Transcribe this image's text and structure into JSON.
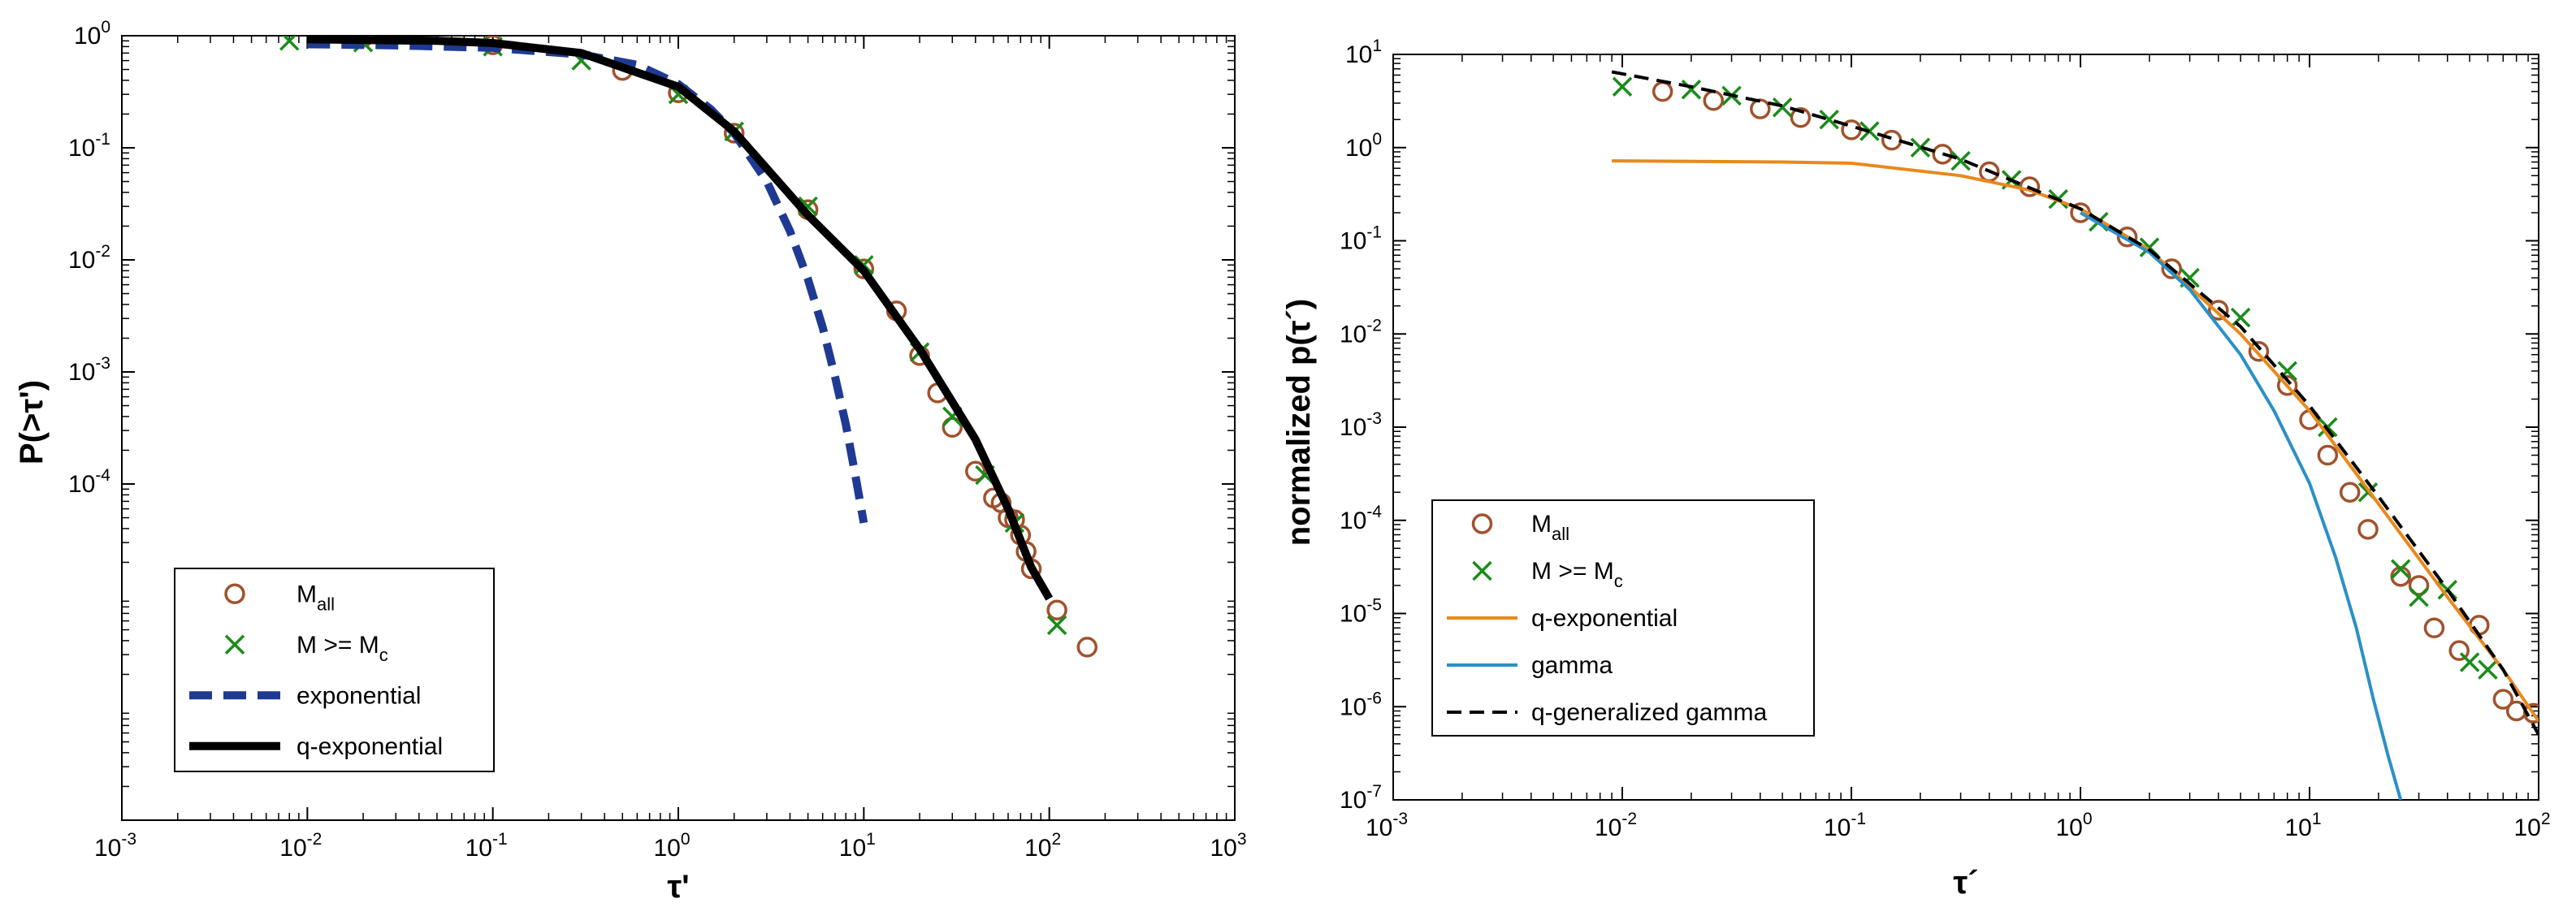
{
  "chart_data": [
    {
      "type": "line",
      "scale": "log-log",
      "title": "",
      "xlabel": "τ'",
      "ylabel": "P(>τ')",
      "xlim": [
        0.001,
        1000
      ],
      "ylim": [
        1e-07,
        1
      ],
      "xticks": [
        {
          "base": "10",
          "exp": "-3"
        },
        {
          "base": "10",
          "exp": "-2"
        },
        {
          "base": "10",
          "exp": "-1"
        },
        {
          "base": "10",
          "exp": "0"
        },
        {
          "base": "10",
          "exp": "1"
        },
        {
          "base": "10",
          "exp": "2"
        },
        {
          "base": "10",
          "exp": "3"
        }
      ],
      "yticks": [
        {
          "base": "10",
          "exp": "-4"
        },
        {
          "base": "10",
          "exp": "-3"
        },
        {
          "base": "10",
          "exp": "-2"
        },
        {
          "base": "10",
          "exp": "-1"
        },
        {
          "base": "10",
          "exp": "0"
        }
      ],
      "legend": {
        "position": "bottom-left",
        "entries": [
          {
            "base": "M",
            "sub": "all"
          },
          {
            "base": "M >= M",
            "sub": "c"
          },
          {
            "base": "exponential",
            "sub": ""
          },
          {
            "base": "q-exponential",
            "sub": ""
          }
        ]
      },
      "series": [
        {
          "name": "M_all",
          "style": "circle",
          "color": "#a0522d",
          "points": [
            [
              0.02,
              0.97
            ],
            [
              0.1,
              0.83
            ],
            [
              0.5,
              0.49
            ],
            [
              1,
              0.31
            ],
            [
              2,
              0.135
            ],
            [
              5,
              0.028
            ],
            [
              10,
              0.0083
            ],
            [
              15,
              0.0035
            ],
            [
              20,
              0.0014
            ],
            [
              25,
              0.00065
            ],
            [
              30,
              0.00032
            ],
            [
              40,
              0.00013
            ],
            [
              50,
              7.5e-05
            ],
            [
              55,
              6.8e-05
            ],
            [
              60,
              5e-05
            ],
            [
              65,
              4.8e-05
            ],
            [
              70,
              3.5e-05
            ],
            [
              75,
              2.5e-05
            ],
            [
              80,
              1.75e-05
            ],
            [
              110,
              7.5e-06
            ],
            [
              160,
              3.5e-06
            ]
          ]
        },
        {
          "name": "M >= M_c",
          "style": "cross",
          "color": "#1a8c1a",
          "points": [
            [
              0.008,
              0.9
            ],
            [
              0.02,
              0.87
            ],
            [
              0.1,
              0.8
            ],
            [
              0.3,
              0.6
            ],
            [
              1,
              0.3
            ],
            [
              2,
              0.14
            ],
            [
              5,
              0.03
            ],
            [
              10,
              0.009
            ],
            [
              20,
              0.0015
            ],
            [
              30,
              0.0004
            ],
            [
              45,
              0.00012
            ],
            [
              65,
              4.5e-05
            ],
            [
              110,
              5.5e-06
            ]
          ]
        },
        {
          "name": "exponential",
          "style": "dashed",
          "color": "#1f3a93",
          "points": [
            [
              0.01,
              0.84
            ],
            [
              0.03,
              0.82
            ],
            [
              0.1,
              0.78
            ],
            [
              0.3,
              0.68
            ],
            [
              0.6,
              0.55
            ],
            [
              1,
              0.37
            ],
            [
              1.5,
              0.22
            ],
            [
              2,
              0.135
            ],
            [
              3,
              0.05
            ],
            [
              4,
              0.018
            ],
            [
              5,
              0.0067
            ],
            [
              6,
              0.0025
            ],
            [
              7,
              0.0009
            ],
            [
              8,
              0.00034
            ],
            [
              9,
              0.00012
            ],
            [
              10,
              4.5e-05
            ]
          ]
        },
        {
          "name": "q-exponential",
          "style": "solid",
          "color": "#000000",
          "points": [
            [
              0.01,
              0.93
            ],
            [
              0.05,
              0.9
            ],
            [
              0.1,
              0.86
            ],
            [
              0.3,
              0.7
            ],
            [
              1,
              0.35
            ],
            [
              2,
              0.14
            ],
            [
              5,
              0.025
            ],
            [
              10,
              0.008
            ],
            [
              20,
              0.0016
            ],
            [
              40,
              0.00025
            ],
            [
              60,
              6e-05
            ],
            [
              80,
              1.8e-05
            ],
            [
              100,
              9.5e-06
            ]
          ]
        }
      ]
    },
    {
      "type": "line",
      "scale": "log-log",
      "title": "",
      "xlabel": "τ´",
      "ylabel": "normalized p(τ´)",
      "xlim": [
        0.001,
        100
      ],
      "ylim": [
        1e-07,
        10
      ],
      "xticks": [
        {
          "base": "10",
          "exp": "-3"
        },
        {
          "base": "10",
          "exp": "-2"
        },
        {
          "base": "10",
          "exp": "-1"
        },
        {
          "base": "10",
          "exp": "0"
        },
        {
          "base": "10",
          "exp": "1"
        },
        {
          "base": "10",
          "exp": "2"
        }
      ],
      "yticks": [
        {
          "base": "10",
          "exp": "-7"
        },
        {
          "base": "10",
          "exp": "-6"
        },
        {
          "base": "10",
          "exp": "-5"
        },
        {
          "base": "10",
          "exp": "-4"
        },
        {
          "base": "10",
          "exp": "-3"
        },
        {
          "base": "10",
          "exp": "-2"
        },
        {
          "base": "10",
          "exp": "-1"
        },
        {
          "base": "10",
          "exp": "0"
        },
        {
          "base": "10",
          "exp": "1"
        }
      ],
      "legend": {
        "position": "bottom-left",
        "entries": [
          {
            "base": "M",
            "sub": "all"
          },
          {
            "base": "M >= M",
            "sub": "c"
          },
          {
            "base": "q-exponential",
            "sub": ""
          },
          {
            "base": "gamma",
            "sub": ""
          },
          {
            "base": "q-generalized gamma",
            "sub": ""
          }
        ]
      },
      "series": [
        {
          "name": "M_all",
          "style": "circle",
          "color": "#a0522d",
          "points": [
            [
              0.015,
              4
            ],
            [
              0.025,
              3.2
            ],
            [
              0.04,
              2.6
            ],
            [
              0.06,
              2.1
            ],
            [
              0.1,
              1.55
            ],
            [
              0.15,
              1.2
            ],
            [
              0.25,
              0.85
            ],
            [
              0.4,
              0.55
            ],
            [
              0.6,
              0.38
            ],
            [
              1,
              0.2
            ],
            [
              1.6,
              0.11
            ],
            [
              2.5,
              0.05
            ],
            [
              4,
              0.018
            ],
            [
              6,
              0.0065
            ],
            [
              8,
              0.0028
            ],
            [
              10,
              0.0012
            ],
            [
              12,
              0.0005
            ],
            [
              15,
              0.0002
            ],
            [
              18,
              8e-05
            ],
            [
              25,
              2.5e-05
            ],
            [
              30,
              2e-05
            ],
            [
              35,
              7e-06
            ],
            [
              45,
              4e-06
            ],
            [
              55,
              7.5e-06
            ],
            [
              70,
              1.2e-06
            ],
            [
              80,
              9e-07
            ],
            [
              95,
              8.5e-07
            ]
          ]
        },
        {
          "name": "M >= M_c",
          "style": "cross",
          "color": "#1a8c1a",
          "points": [
            [
              0.01,
              4.5
            ],
            [
              0.02,
              4.2
            ],
            [
              0.03,
              3.6
            ],
            [
              0.05,
              2.7
            ],
            [
              0.08,
              2.0
            ],
            [
              0.12,
              1.5
            ],
            [
              0.2,
              1.0
            ],
            [
              0.3,
              0.72
            ],
            [
              0.5,
              0.45
            ],
            [
              0.8,
              0.28
            ],
            [
              1.2,
              0.16
            ],
            [
              2,
              0.085
            ],
            [
              3,
              0.04
            ],
            [
              5,
              0.015
            ],
            [
              8,
              0.004
            ],
            [
              12,
              0.001
            ],
            [
              18,
              0.0002
            ],
            [
              25,
              3e-05
            ],
            [
              30,
              1.5e-05
            ],
            [
              40,
              1.8e-05
            ],
            [
              50,
              3e-06
            ],
            [
              60,
              2.5e-06
            ]
          ]
        },
        {
          "name": "q-exponential",
          "style": "solid",
          "color": "#e8891c",
          "points": [
            [
              0.009,
              0.72
            ],
            [
              0.05,
              0.7
            ],
            [
              0.1,
              0.68
            ],
            [
              0.3,
              0.5
            ],
            [
              0.6,
              0.35
            ],
            [
              1,
              0.22
            ],
            [
              2,
              0.08
            ],
            [
              5,
              0.01
            ],
            [
              10,
              0.0015
            ],
            [
              20,
              0.00015
            ],
            [
              40,
              1.5e-05
            ],
            [
              70,
              2.5e-06
            ],
            [
              100,
              7e-07
            ]
          ]
        },
        {
          "name": "gamma",
          "style": "solid",
          "color": "#2b90c8",
          "points": [
            [
              1,
              0.2
            ],
            [
              2,
              0.075
            ],
            [
              3,
              0.03
            ],
            [
              5,
              0.006
            ],
            [
              7,
              0.0015
            ],
            [
              10,
              0.00025
            ],
            [
              13,
              4e-05
            ],
            [
              16,
              7e-06
            ],
            [
              19,
              1.2e-06
            ],
            [
              22,
              3e-07
            ],
            [
              25,
              1e-07
            ]
          ]
        },
        {
          "name": "q-generalized gamma",
          "style": "dashed",
          "color": "#000000",
          "points": [
            [
              0.009,
              6.5
            ],
            [
              0.02,
              4.5
            ],
            [
              0.05,
              2.8
            ],
            [
              0.1,
              1.7
            ],
            [
              0.3,
              0.75
            ],
            [
              1,
              0.22
            ],
            [
              2,
              0.08
            ],
            [
              5,
              0.012
            ],
            [
              10,
              0.0017
            ],
            [
              20,
              0.00018
            ],
            [
              40,
              1.8e-05
            ],
            [
              70,
              2.5e-06
            ],
            [
              100,
              5e-07
            ]
          ]
        }
      ]
    }
  ]
}
